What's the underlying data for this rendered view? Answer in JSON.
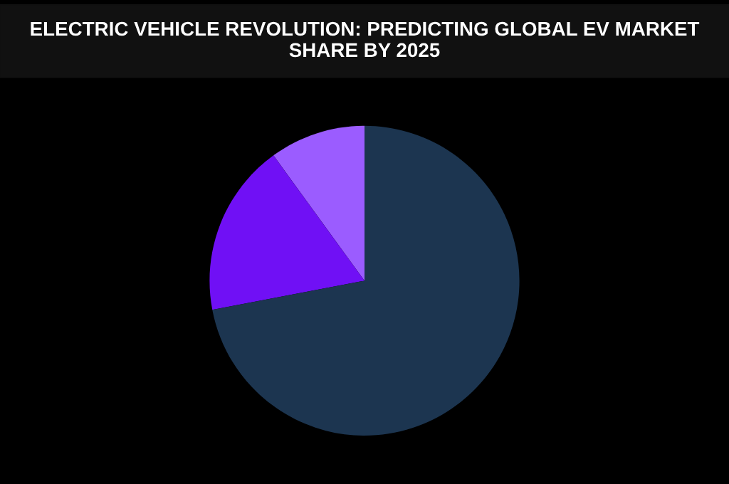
{
  "chart_data": {
    "type": "pie",
    "title": "ELECTRIC VEHICLE REVOLUTION: PREDICTING GLOBAL EV MARKET SHARE BY 2025",
    "categories": [
      null,
      null,
      null
    ],
    "values": [
      10,
      18,
      72
    ],
    "colors": [
      "#9b5cff",
      "#7010f5",
      "#1c3550"
    ],
    "legend": false
  }
}
